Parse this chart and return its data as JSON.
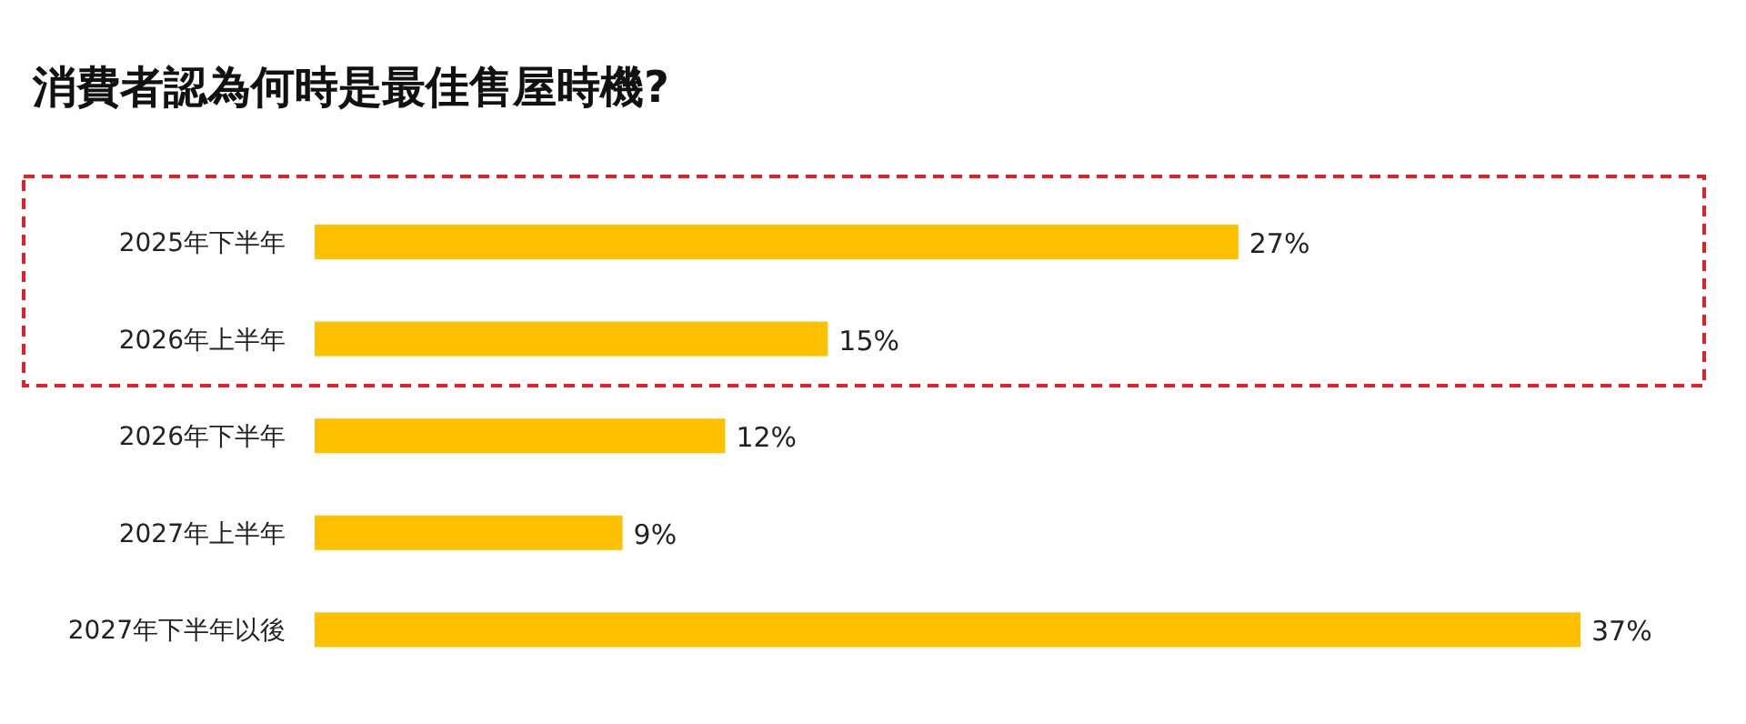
{
  "chart_data": {
    "type": "bar",
    "orientation": "horizontal",
    "title": "消費者認為何時是最佳售屋時機?",
    "categories": [
      "2025年下半年",
      "2026年上半年",
      "2026年下半年",
      "2027年上半年",
      "2027年下半年以後"
    ],
    "values": [
      27,
      15,
      12,
      9,
      37
    ],
    "value_labels": [
      "27%",
      "15%",
      "12%",
      "9%",
      "37%"
    ],
    "color": "#ffc000",
    "xlim": [
      0,
      37
    ]
  }
}
